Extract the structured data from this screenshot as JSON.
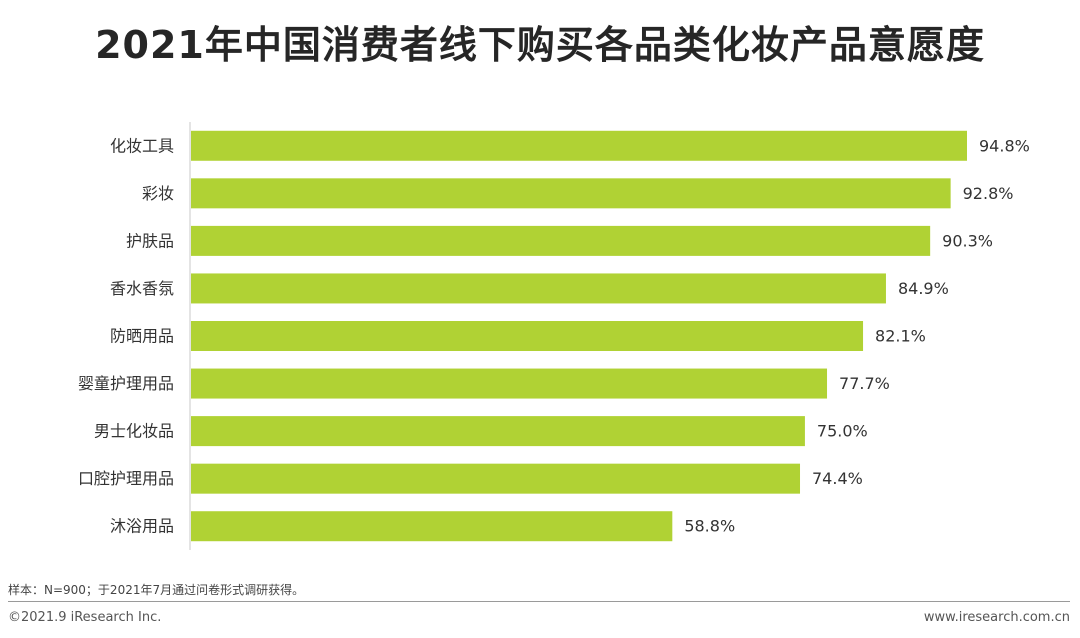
{
  "title": "2021年中国消费者线下购买各品类化妆产品意愿度",
  "colors": {
    "bar": "#b0d234",
    "axis": "#c8c8c8",
    "text": "#333333"
  },
  "chart_data": {
    "type": "bar",
    "orientation": "horizontal",
    "categories": [
      "化妆工具",
      "彩妆",
      "护肤品",
      "香水香氛",
      "防晒用品",
      "婴童护理用品",
      "男士化妆品",
      "口腔护理用品",
      "沐浴用品"
    ],
    "values": [
      94.8,
      92.8,
      90.3,
      84.9,
      82.1,
      77.7,
      75.0,
      74.4,
      58.8
    ],
    "data_labels": [
      "94.8%",
      "92.8%",
      "90.3%",
      "84.9%",
      "82.1%",
      "77.7%",
      "75.0%",
      "74.4%",
      "58.8%"
    ],
    "value_unit": "%",
    "xlim": [
      0,
      100
    ],
    "xlabel": "",
    "ylabel": "",
    "grid": false,
    "legend": "none"
  },
  "footer": {
    "note": "样本：N=900；于2021年7月通过问卷形式调研获得。",
    "copyright": "©2021.9 iResearch Inc.",
    "website": "www.iresearch.com.cn"
  }
}
